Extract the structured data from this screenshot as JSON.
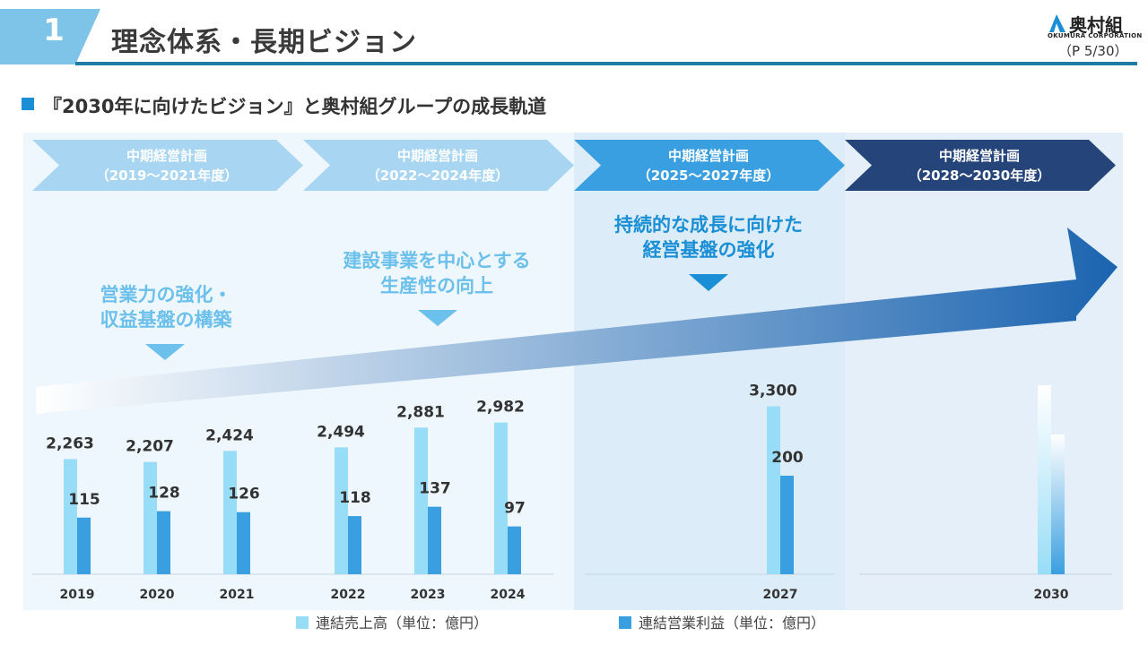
{
  "header": {
    "section_number": "1",
    "title": "理念体系・長期ビジョン",
    "logo_text": "奥村組",
    "logo_sub": "OKUMURA CORPORATION",
    "page_number": "（P 5/30）"
  },
  "subtitle": "『2030年に向けたビジョン』と奥村組グループの成長軌道",
  "phases": [
    {
      "line1": "中期経営計画",
      "line2": "（2019～2021年度）",
      "color": "#a8d6f2"
    },
    {
      "line1": "中期経営計画",
      "line2": "（2022～2024年度）",
      "color": "#a8d6f2"
    },
    {
      "line1": "中期経営計画",
      "line2": "（2025～2027年度）",
      "color": "#3a9fe0"
    },
    {
      "line1": "中期経営計画",
      "line2": "（2028～2030年度）",
      "color": "#25457a"
    }
  ],
  "goals": [
    {
      "lines": [
        "営業力の強化・",
        "収益基盤の構築"
      ],
      "color": "#6cc0ec"
    },
    {
      "lines": [
        "建設事業を中心とする",
        "生産性の向上"
      ],
      "color": "#6cc0ec"
    },
    {
      "lines": [
        "持続的な成長に向けた",
        "経営基盤の強化"
      ],
      "color": "#1a8fd6"
    }
  ],
  "colors": {
    "sales": "#98ddf7",
    "profit": "#3a9fe0",
    "arrow_start": "#ffffff",
    "arrow_end": "#1b64b0"
  },
  "chart_data": {
    "type": "bar",
    "categories": [
      "2019",
      "2020",
      "2021",
      "2022",
      "2023",
      "2024",
      "2027",
      "2030"
    ],
    "series": [
      {
        "name": "連結売上高（単位：億円）",
        "values": [
          2263,
          2207,
          2424,
          2494,
          2881,
          2982,
          3300,
          null
        ],
        "labels": [
          "2,263",
          "2,207",
          "2,424",
          "2,494",
          "2,881",
          "2,982",
          "3,300",
          ""
        ]
      },
      {
        "name": "連結営業利益（単位：億円）",
        "values": [
          115,
          128,
          126,
          118,
          137,
          97,
          200,
          null
        ],
        "labels": [
          "115",
          "128",
          "126",
          "118",
          "137",
          "97",
          "200",
          ""
        ]
      }
    ],
    "legend": [
      "連結売上高（単位：億円）",
      "連結営業利益（単位：億円）"
    ],
    "legend_position": "bottom"
  }
}
